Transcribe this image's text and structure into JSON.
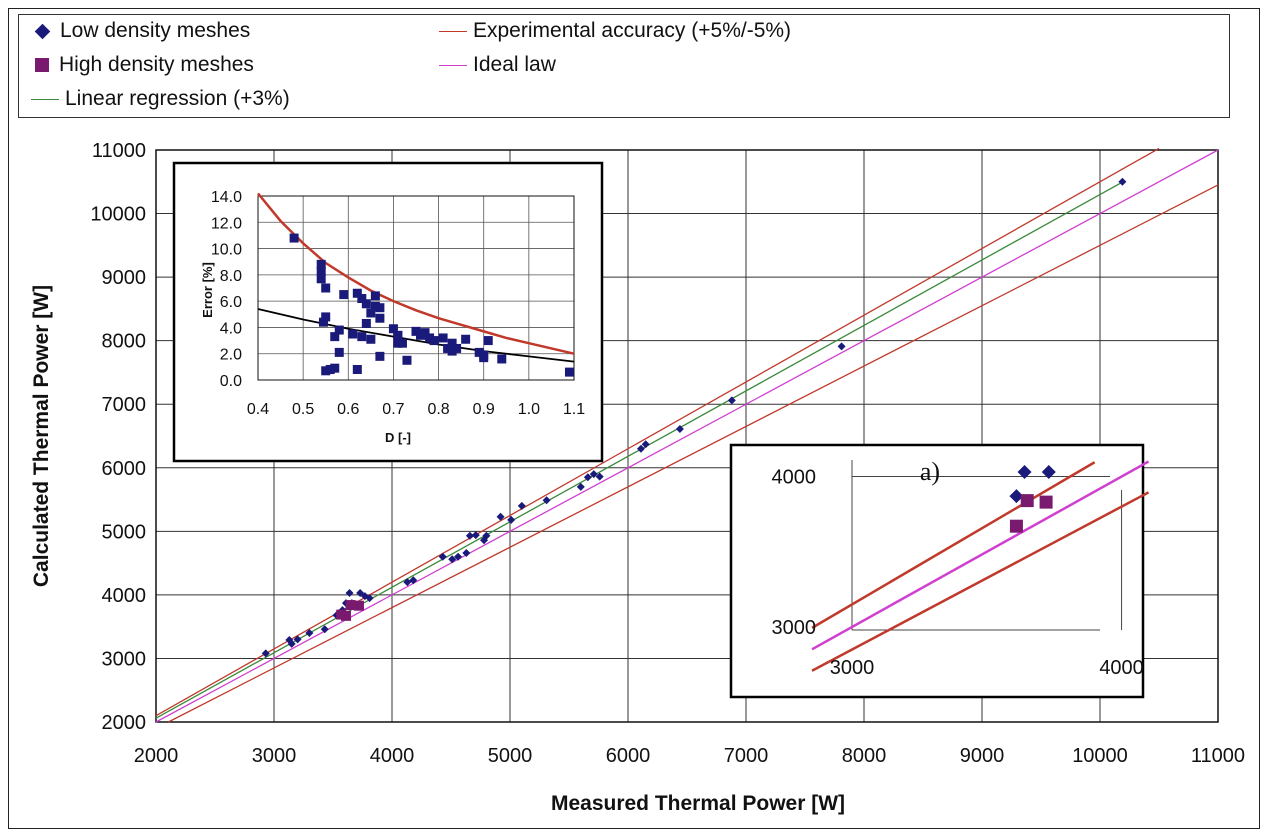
{
  "legend": {
    "items": [
      {
        "label": "Low density meshes",
        "marker": "diamond",
        "color": "#1a1a7a"
      },
      {
        "label": "High density meshes",
        "marker": "square",
        "color": "#7a1a6e"
      },
      {
        "label": "Linear regression (+3%)",
        "marker": "line",
        "color": "#3a8a3a"
      },
      {
        "label": "Experimental accuracy (+5%/-5%)",
        "marker": "line",
        "color": "#c0392b"
      },
      {
        "label": "Ideal law",
        "marker": "line",
        "color": "#d040d0"
      }
    ]
  },
  "colors": {
    "low": "#1a1a7a",
    "high": "#7a1a6e",
    "regression": "#3a8a3a",
    "accuracy": "#c0392b",
    "ideal": "#d040d0",
    "grid": "#333333"
  },
  "chart_data": [
    {
      "type": "scatter",
      "xlabel": "Measured Thermal Power [W]",
      "ylabel": "Calculated Thermal Power [W]",
      "xlim": [
        2000,
        11000
      ],
      "ylim": [
        2000,
        11000
      ],
      "xticks": [
        2000,
        3000,
        4000,
        5000,
        6000,
        7000,
        8000,
        9000,
        10000,
        11000
      ],
      "yticks": [
        2000,
        3000,
        4000,
        5000,
        6000,
        7000,
        8000,
        9000,
        10000,
        11000
      ],
      "grid": true,
      "series": [
        {
          "name": "Low density meshes",
          "marker": "diamond",
          "points": [
            [
              2930,
              3080
            ],
            [
              3130,
              3290
            ],
            [
              3150,
              3230
            ],
            [
              3200,
              3300
            ],
            [
              3300,
              3400
            ],
            [
              3430,
              3460
            ],
            [
              3530,
              3680
            ],
            [
              3580,
              3760
            ],
            [
              3610,
              3870
            ],
            [
              3640,
              4030
            ],
            [
              3660,
              3870
            ],
            [
              3710,
              3850
            ],
            [
              3730,
              4030
            ],
            [
              3770,
              3980
            ],
            [
              3810,
              3950
            ],
            [
              4130,
              4200
            ],
            [
              4180,
              4230
            ],
            [
              4430,
              4600
            ],
            [
              4510,
              4560
            ],
            [
              4560,
              4600
            ],
            [
              4630,
              4660
            ],
            [
              4660,
              4930
            ],
            [
              4710,
              4940
            ],
            [
              4780,
              4860
            ],
            [
              4800,
              4930
            ],
            [
              4920,
              5230
            ],
            [
              5010,
              5180
            ],
            [
              5100,
              5400
            ],
            [
              5310,
              5490
            ],
            [
              5600,
              5700
            ],
            [
              5660,
              5850
            ],
            [
              5710,
              5900
            ],
            [
              5760,
              5860
            ],
            [
              6110,
              6300
            ],
            [
              6150,
              6370
            ],
            [
              6440,
              6610
            ],
            [
              6880,
              7060
            ],
            [
              7810,
              7910
            ],
            [
              10190,
              10500
            ]
          ]
        },
        {
          "name": "High density meshes",
          "marker": "square",
          "points": [
            [
              3570,
              3690
            ],
            [
              3610,
              3670
            ],
            [
              3650,
              3840
            ],
            [
              3720,
              3830
            ]
          ]
        },
        {
          "name": "Linear regression (+3%)",
          "marker": "line",
          "points": [
            [
              2000,
              2060
            ],
            [
              10200,
              10506
            ]
          ]
        },
        {
          "name": "Experimental accuracy (+5%/-5%)",
          "marker": "line",
          "points": [
            [
              2000,
              2100
            ],
            [
              10500,
              11025
            ]
          ]
        },
        {
          "name": "Experimental accuracy (+5%/-5%)",
          "marker": "line",
          "points": [
            [
              2105,
              2000
            ],
            [
              11000,
              10450
            ]
          ]
        },
        {
          "name": "Ideal law",
          "marker": "line",
          "points": [
            [
              2000,
              2000
            ],
            [
              11000,
              11000
            ]
          ]
        }
      ]
    },
    {
      "type": "scatter",
      "xlabel": "D [-]",
      "ylabel": "Error  [%]",
      "xlim": [
        0.4,
        1.1
      ],
      "ylim": [
        0.0,
        14.0
      ],
      "xticks": [
        "0.4",
        "0.5",
        "0.6",
        "0.7",
        "0.8",
        "0.9",
        "1.0",
        "1.1"
      ],
      "yticks": [
        "0.0",
        "2.0",
        "4.0",
        "6.0",
        "8.0",
        "10.0",
        "12.0",
        "14.0"
      ],
      "grid": true,
      "points": [
        [
          0.48,
          10.8
        ],
        [
          0.54,
          8.3
        ],
        [
          0.54,
          7.7
        ],
        [
          0.54,
          8.8
        ],
        [
          0.55,
          7.0
        ],
        [
          0.55,
          4.8
        ],
        [
          0.545,
          4.4
        ],
        [
          0.55,
          0.7
        ],
        [
          0.56,
          0.8
        ],
        [
          0.57,
          3.3
        ],
        [
          0.57,
          0.9
        ],
        [
          0.58,
          2.1
        ],
        [
          0.58,
          3.8
        ],
        [
          0.59,
          6.5
        ],
        [
          0.61,
          3.5
        ],
        [
          0.62,
          6.6
        ],
        [
          0.63,
          6.2
        ],
        [
          0.63,
          3.3
        ],
        [
          0.62,
          0.8
        ],
        [
          0.64,
          5.8
        ],
        [
          0.64,
          4.3
        ],
        [
          0.65,
          5.1
        ],
        [
          0.65,
          3.1
        ],
        [
          0.66,
          6.4
        ],
        [
          0.66,
          5.6
        ],
        [
          0.67,
          5.5
        ],
        [
          0.67,
          4.7
        ],
        [
          0.67,
          1.8
        ],
        [
          0.7,
          3.9
        ],
        [
          0.71,
          3.4
        ],
        [
          0.71,
          2.8
        ],
        [
          0.72,
          2.8
        ],
        [
          0.73,
          1.5
        ],
        [
          0.75,
          3.7
        ],
        [
          0.76,
          3.4
        ],
        [
          0.77,
          3.6
        ],
        [
          0.78,
          3.2
        ],
        [
          0.79,
          3.0
        ],
        [
          0.81,
          3.2
        ],
        [
          0.82,
          2.4
        ],
        [
          0.83,
          2.2
        ],
        [
          0.83,
          2.8
        ],
        [
          0.84,
          2.4
        ],
        [
          0.86,
          3.1
        ],
        [
          0.89,
          2.1
        ],
        [
          0.9,
          1.9
        ],
        [
          0.9,
          1.7
        ],
        [
          0.91,
          3.0
        ],
        [
          0.94,
          1.6
        ],
        [
          1.09,
          0.6
        ]
      ],
      "curves": [
        {
          "color": "#c0392b",
          "points": [
            [
              0.4,
              14.2
            ],
            [
              0.45,
              12.1
            ],
            [
              0.5,
              10.4
            ],
            [
              0.55,
              8.9
            ],
            [
              0.6,
              7.8
            ],
            [
              0.65,
              6.8
            ],
            [
              0.7,
              6.0
            ],
            [
              0.75,
              5.3
            ],
            [
              0.8,
              4.7
            ],
            [
              0.85,
              4.2
            ],
            [
              0.9,
              3.7
            ],
            [
              0.95,
              3.2
            ],
            [
              1.0,
              2.8
            ],
            [
              1.05,
              2.4
            ],
            [
              1.1,
              2.0
            ]
          ]
        },
        {
          "color": "#000000",
          "points": [
            [
              0.4,
              5.4
            ],
            [
              0.5,
              4.6
            ],
            [
              0.6,
              3.9
            ],
            [
              0.7,
              3.3
            ],
            [
              0.8,
              2.7
            ],
            [
              0.9,
              2.2
            ],
            [
              1.0,
              1.8
            ],
            [
              1.1,
              1.4
            ]
          ]
        }
      ]
    },
    {
      "type": "scatter",
      "title": "a)",
      "xlim": [
        3000,
        4100
      ],
      "ylim": [
        2900,
        4100
      ],
      "xticks": [
        "3000",
        "4000"
      ],
      "yticks": [
        "3000",
        "4000"
      ],
      "grid": true,
      "series": [
        {
          "name": "Low density meshes",
          "marker": "diamond",
          "points": [
            [
              3610,
              3870
            ],
            [
              3640,
              4030
            ],
            [
              3730,
              4030
            ]
          ]
        },
        {
          "name": "High density meshes",
          "marker": "square",
          "points": [
            [
              3610,
              3670
            ],
            [
              3650,
              3840
            ],
            [
              3720,
              3830
            ]
          ]
        }
      ],
      "lines": [
        {
          "color": "#c0392b",
          "points": [
            [
              3000,
              3150
            ],
            [
              3900,
              4095
            ]
          ]
        },
        {
          "color": "#c0392b",
          "points": [
            [
              3000,
              2850
            ],
            [
              4100,
              3895
            ]
          ]
        },
        {
          "color": "#d040d0",
          "points": [
            [
              3000,
              3000
            ],
            [
              4100,
              4100
            ]
          ]
        }
      ]
    }
  ]
}
